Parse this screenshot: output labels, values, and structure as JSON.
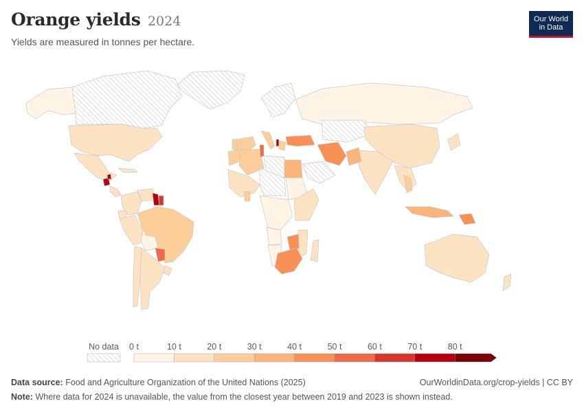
{
  "header": {
    "title": "Orange yields",
    "year": "2024",
    "subtitle": "Yields are measured in tonnes per hectare."
  },
  "logo": {
    "line1": "Our World",
    "line2": "in Data"
  },
  "chart_data": {
    "type": "choropleth",
    "variable": "Orange yield",
    "unit": "t",
    "year": "2024",
    "no_data_label": "No data",
    "scale": {
      "ticks": [
        "0 t",
        "10 t",
        "20 t",
        "30 t",
        "40 t",
        "50 t",
        "60 t",
        "70 t",
        "80 t"
      ],
      "bins": [
        {
          "min": 0,
          "max": 10,
          "color": "#fff4e6"
        },
        {
          "min": 10,
          "max": 20,
          "color": "#fde3c2"
        },
        {
          "min": 20,
          "max": 30,
          "color": "#fcce99"
        },
        {
          "min": 30,
          "max": 40,
          "color": "#fbb57a"
        },
        {
          "min": 40,
          "max": 50,
          "color": "#f99157"
        },
        {
          "min": 50,
          "max": 60,
          "color": "#ef6a47"
        },
        {
          "min": 60,
          "max": 70,
          "color": "#d9362b"
        },
        {
          "min": 70,
          "max": 80,
          "color": "#b3000c"
        },
        {
          "min": 80,
          "max": 90,
          "color": "#7a0006"
        }
      ]
    },
    "regions": [
      {
        "name": "Canada",
        "bin": "none"
      },
      {
        "name": "Alaska",
        "bin": "0-10"
      },
      {
        "name": "Greenland",
        "bin": "none"
      },
      {
        "name": "United States",
        "bin": "10-20"
      },
      {
        "name": "Mexico",
        "bin": "10-20"
      },
      {
        "name": "Guatemala",
        "bin": "70-80"
      },
      {
        "name": "Belize",
        "bin": "70-80"
      },
      {
        "name": "Central America",
        "bin": "10-20"
      },
      {
        "name": "Cuba",
        "bin": "10-20"
      },
      {
        "name": "Colombia",
        "bin": "10-20"
      },
      {
        "name": "Venezuela",
        "bin": "10-20"
      },
      {
        "name": "Guyana",
        "bin": "70-80"
      },
      {
        "name": "Suriname",
        "bin": "60-70"
      },
      {
        "name": "Ecuador",
        "bin": "10-20"
      },
      {
        "name": "Peru",
        "bin": "10-20"
      },
      {
        "name": "Brazil",
        "bin": "20-30"
      },
      {
        "name": "Bolivia",
        "bin": "0-10"
      },
      {
        "name": "Paraguay",
        "bin": "50-60"
      },
      {
        "name": "Chile",
        "bin": "10-20"
      },
      {
        "name": "Argentina",
        "bin": "10-20"
      },
      {
        "name": "Uruguay",
        "bin": "10-20"
      },
      {
        "name": "Russia",
        "bin": "0-10"
      },
      {
        "name": "Scandinavia",
        "bin": "none"
      },
      {
        "name": "Spain",
        "bin": "20-30"
      },
      {
        "name": "Portugal",
        "bin": "20-30"
      },
      {
        "name": "Italy",
        "bin": "20-30"
      },
      {
        "name": "Albania",
        "bin": "70-80"
      },
      {
        "name": "Greece",
        "bin": "20-30"
      },
      {
        "name": "Turkey",
        "bin": "40-50"
      },
      {
        "name": "Morocco",
        "bin": "20-30"
      },
      {
        "name": "Algeria",
        "bin": "20-30"
      },
      {
        "name": "Tunisia",
        "bin": "50-60"
      },
      {
        "name": "Libya",
        "bin": "none"
      },
      {
        "name": "Egypt",
        "bin": "30-40"
      },
      {
        "name": "Iran",
        "bin": "40-50"
      },
      {
        "name": "Saudi Arabia",
        "bin": "none"
      },
      {
        "name": "Central Asia",
        "bin": "none"
      },
      {
        "name": "China",
        "bin": "10-20"
      },
      {
        "name": "India",
        "bin": "10-20"
      },
      {
        "name": "Pakistan",
        "bin": "30-40"
      },
      {
        "name": "Southeast Asia",
        "bin": "10-20"
      },
      {
        "name": "Thailand",
        "bin": "20-30"
      },
      {
        "name": "Japan",
        "bin": "10-20"
      },
      {
        "name": "Indonesia",
        "bin": "30-40"
      },
      {
        "name": "Papua New Guinea",
        "bin": "40-50"
      },
      {
        "name": "Australia",
        "bin": "10-20"
      },
      {
        "name": "New Zealand",
        "bin": "10-20"
      },
      {
        "name": "West Africa",
        "bin": "10-20"
      },
      {
        "name": "Ghana",
        "bin": "20-30"
      },
      {
        "name": "Sahel",
        "bin": "none"
      },
      {
        "name": "Sudan",
        "bin": "0-10"
      },
      {
        "name": "Central Africa",
        "bin": "0-10"
      },
      {
        "name": "East Africa",
        "bin": "10-20"
      },
      {
        "name": "Angola",
        "bin": "0-10"
      },
      {
        "name": "Zimbabwe",
        "bin": "40-50"
      },
      {
        "name": "Mozambique",
        "bin": "10-20"
      },
      {
        "name": "Namibia",
        "bin": "0-10"
      },
      {
        "name": "South Africa",
        "bin": "40-50"
      },
      {
        "name": "Madagascar",
        "bin": "10-20"
      }
    ]
  },
  "footer": {
    "source_label": "Data source:",
    "source_text": "Food and Agriculture Organization of the United Nations (2025)",
    "url_text": "OurWorldinData.org/crop-yields | CC BY",
    "note_label": "Note:",
    "note_text": "Where data for 2024 is unavailable, the value from the closest year between 2019 and 2023 is shown instead."
  }
}
